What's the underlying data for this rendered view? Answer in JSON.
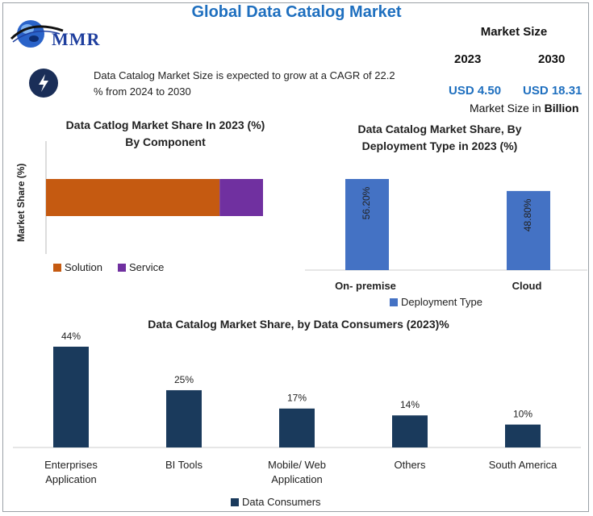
{
  "header": {
    "title": "Global Data Catalog Market",
    "logo_text": "MMR",
    "description": "Data Catalog Market Size is expected to grow at a CAGR of 22.2 % from 2024 to 2030",
    "market_size_label": "Market Size",
    "year_2023": "2023",
    "year_2030": "2030",
    "value_2023": "USD 4.50",
    "value_2030": "USD 18.31",
    "unit_prefix": "Market Size in",
    "unit_bold": "Billion"
  },
  "colors": {
    "title_blue": "#1e6fbf",
    "solution": "#c55a11",
    "service": "#7030a0",
    "deployment": "#4472c4",
    "consumers": "#1a3a5c"
  },
  "chart_data": [
    {
      "type": "bar",
      "orientation": "horizontal-stacked",
      "title": "Data Catlog Market Share In 2023 (%) By Component",
      "title_line1": "Data Catlog Market Share In 2023 (%)",
      "title_line2": "By Component",
      "ylabel": "Market Share (%)",
      "series": [
        {
          "name": "Solution",
          "values": [
            80
          ]
        },
        {
          "name": "Service",
          "values": [
            20
          ]
        }
      ],
      "legend": "bottom-left"
    },
    {
      "type": "bar",
      "title": "Data Catalog Market Share, By Deployment Type in 2023 (%)",
      "title_line1": "Data Catalog Market Share, By",
      "title_line2": "Deployment Type in 2023 (%)",
      "categories": [
        "On- premise",
        "Cloud"
      ],
      "series": [
        {
          "name": "Deployment Type",
          "values": [
            56.2,
            48.8
          ]
        }
      ],
      "data_labels": [
        "56.20%",
        "48.80%"
      ],
      "legend": "bottom-center"
    },
    {
      "type": "bar",
      "title": "Data Catalog Market Share, by Data Consumers (2023)%",
      "categories": [
        "Enterprises Application",
        "BI Tools",
        "Mobile/ Web Application",
        "Others",
        "South America"
      ],
      "category_lines": [
        [
          "Enterprises",
          "Application"
        ],
        [
          "BI Tools"
        ],
        [
          "Mobile/ Web",
          "Application"
        ],
        [
          "Others"
        ],
        [
          "South America"
        ]
      ],
      "series": [
        {
          "name": "Data Consumers",
          "values": [
            44,
            25,
            17,
            14,
            10
          ]
        }
      ],
      "data_labels": [
        "44%",
        "25%",
        "17%",
        "14%",
        "10%"
      ],
      "legend": "bottom-center"
    }
  ]
}
